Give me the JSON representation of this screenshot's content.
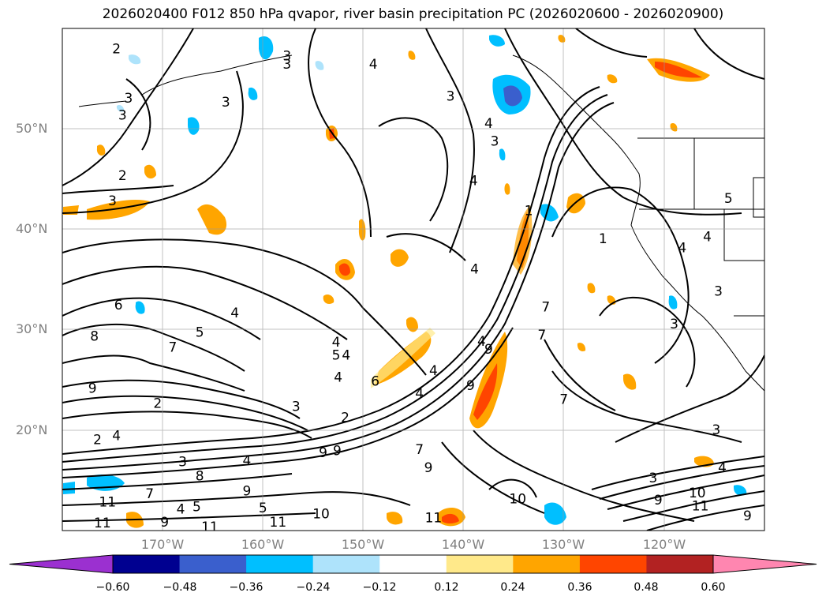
{
  "title": "2026020400 F012 850 hPa qvapor, river basin precipitation PC (2026020600 - 2026020900)",
  "axes": {
    "lat_ticks": [
      "50°N",
      "40°N",
      "30°N",
      "20°N"
    ],
    "lon_ticks": [
      "170°W",
      "160°W",
      "150°W",
      "140°W",
      "130°W",
      "120°W"
    ],
    "extent": {
      "lon": [
        -180,
        -110
      ],
      "lat": [
        10,
        60
      ]
    },
    "grid": true
  },
  "colorbar": {
    "ticks": [
      "−0.60",
      "−0.48",
      "−0.36",
      "−0.24",
      "−0.12",
      "0.12",
      "0.24",
      "0.36",
      "0.48",
      "0.60"
    ],
    "colors": [
      "#9b30d0",
      "#000090",
      "#3a5fcd",
      "#00bfff",
      "#aee3fb",
      "#ffffff",
      "#ffe98a",
      "#ffa500",
      "#ff4500",
      "#b22222",
      "#ff86b0"
    ],
    "extend": "both"
  },
  "contour_labels": [
    {
      "t": "2",
      "lon": -174.6,
      "lat": 57.9
    },
    {
      "t": "3",
      "lon": -157.6,
      "lat": 57.2
    },
    {
      "t": "3",
      "lon": -157.6,
      "lat": 56.4
    },
    {
      "t": "4",
      "lon": -149.0,
      "lat": 56.4
    },
    {
      "t": "3",
      "lon": -173.4,
      "lat": 53.0
    },
    {
      "t": "3",
      "lon": -174.0,
      "lat": 51.3
    },
    {
      "t": "2",
      "lon": -174.0,
      "lat": 45.3
    },
    {
      "t": "3",
      "lon": -175.0,
      "lat": 42.8
    },
    {
      "t": "3",
      "lon": -163.7,
      "lat": 52.6
    },
    {
      "t": "3",
      "lon": -141.3,
      "lat": 53.2
    },
    {
      "t": "4",
      "lon": -137.5,
      "lat": 50.5
    },
    {
      "t": "3",
      "lon": -136.9,
      "lat": 48.7
    },
    {
      "t": "4",
      "lon": -139.0,
      "lat": 44.8
    },
    {
      "t": "1",
      "lon": -133.5,
      "lat": 41.8
    },
    {
      "t": "4",
      "lon": -138.9,
      "lat": 36.0
    },
    {
      "t": "1",
      "lon": -126.1,
      "lat": 39.0
    },
    {
      "t": "4",
      "lon": -118.2,
      "lat": 38.1
    },
    {
      "t": "4",
      "lon": -115.7,
      "lat": 39.2
    },
    {
      "t": "5",
      "lon": -113.6,
      "lat": 43.0
    },
    {
      "t": "3",
      "lon": -114.6,
      "lat": 33.8
    },
    {
      "t": "3",
      "lon": -119.0,
      "lat": 30.5
    },
    {
      "t": "6",
      "lon": -174.4,
      "lat": 32.4
    },
    {
      "t": "8",
      "lon": -176.8,
      "lat": 29.3
    },
    {
      "t": "4",
      "lon": -162.8,
      "lat": 31.6
    },
    {
      "t": "5",
      "lon": -166.3,
      "lat": 29.7
    },
    {
      "t": "7",
      "lon": -169.0,
      "lat": 28.2
    },
    {
      "t": "4",
      "lon": -152.7,
      "lat": 28.7
    },
    {
      "t": "5",
      "lon": -152.7,
      "lat": 27.4
    },
    {
      "t": "4",
      "lon": -151.7,
      "lat": 27.4
    },
    {
      "t": "4",
      "lon": -152.5,
      "lat": 25.2
    },
    {
      "t": "6",
      "lon": -148.8,
      "lat": 24.8
    },
    {
      "t": "4",
      "lon": -143.0,
      "lat": 25.9
    },
    {
      "t": "4",
      "lon": -144.4,
      "lat": 23.6
    },
    {
      "t": "9",
      "lon": -139.3,
      "lat": 24.4
    },
    {
      "t": "4",
      "lon": -138.2,
      "lat": 28.8
    },
    {
      "t": "9",
      "lon": -137.5,
      "lat": 28.0
    },
    {
      "t": "7",
      "lon": -131.8,
      "lat": 32.2
    },
    {
      "t": "7",
      "lon": -132.2,
      "lat": 29.4
    },
    {
      "t": "9",
      "lon": -177.0,
      "lat": 24.1
    },
    {
      "t": "2",
      "lon": -170.5,
      "lat": 22.6
    },
    {
      "t": "3",
      "lon": -156.7,
      "lat": 22.3
    },
    {
      "t": "2",
      "lon": -151.8,
      "lat": 21.2
    },
    {
      "t": "2",
      "lon": -176.5,
      "lat": 19.0
    },
    {
      "t": "4",
      "lon": -174.6,
      "lat": 19.4
    },
    {
      "t": "3",
      "lon": -168.0,
      "lat": 16.8
    },
    {
      "t": "4",
      "lon": -161.6,
      "lat": 16.9
    },
    {
      "t": "8",
      "lon": -166.3,
      "lat": 15.4
    },
    {
      "t": "9",
      "lon": -161.6,
      "lat": 13.9
    },
    {
      "t": "11",
      "lon": -175.5,
      "lat": 12.8
    },
    {
      "t": "7",
      "lon": -171.3,
      "lat": 13.6
    },
    {
      "t": "4",
      "lon": -168.2,
      "lat": 12.1
    },
    {
      "t": "5",
      "lon": -166.6,
      "lat": 12.3
    },
    {
      "t": "5",
      "lon": -160.0,
      "lat": 12.2
    },
    {
      "t": "9",
      "lon": -169.8,
      "lat": 10.8
    },
    {
      "t": "11",
      "lon": -176.0,
      "lat": 10.7
    },
    {
      "t": "11",
      "lon": -165.3,
      "lat": 10.3
    },
    {
      "t": "11",
      "lon": -158.5,
      "lat": 10.8
    },
    {
      "t": "10",
      "lon": -154.2,
      "lat": 11.6
    },
    {
      "t": "11",
      "lon": -143.0,
      "lat": 11.2
    },
    {
      "t": "9",
      "lon": -154.0,
      "lat": 17.7
    },
    {
      "t": "7",
      "lon": -144.4,
      "lat": 18.0
    },
    {
      "t": "9",
      "lon": -143.5,
      "lat": 16.2
    },
    {
      "t": "10",
      "lon": -134.6,
      "lat": 13.1
    },
    {
      "t": "7",
      "lon": -130.0,
      "lat": 23.0
    },
    {
      "t": "3",
      "lon": -121.1,
      "lat": 15.2
    },
    {
      "t": "9",
      "lon": -120.6,
      "lat": 13.0
    },
    {
      "t": "3",
      "lon": -114.8,
      "lat": 20.0
    },
    {
      "t": "10",
      "lon": -116.7,
      "lat": 13.7
    },
    {
      "t": "11",
      "lon": -116.4,
      "lat": 12.4
    },
    {
      "t": "9",
      "lon": -111.7,
      "lat": 11.4
    },
    {
      "t": "4",
      "lon": -114.2,
      "lat": 16.2
    },
    {
      "t": "9",
      "lon": -152.6,
      "lat": 17.9
    }
  ]
}
